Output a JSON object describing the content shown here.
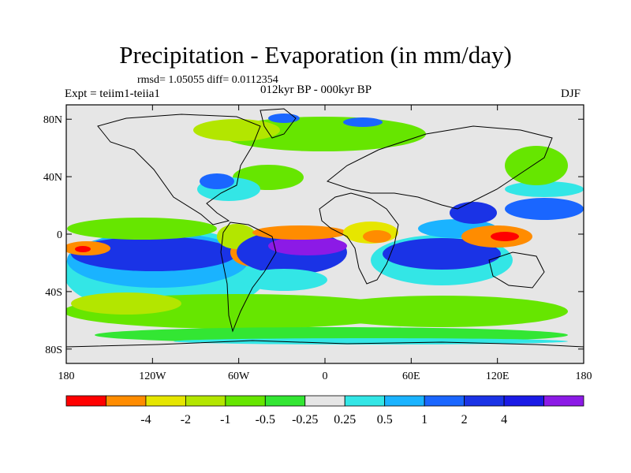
{
  "title": "Precipitation - Evaporation (in mm/day)",
  "stats_text": "rmsd= 1.05055 diff= 0.0112354",
  "experiment_text": "Expt = teiim1-teiia1",
  "period_text": "012kyr BP - 000kyr BP",
  "season": "DJF",
  "colors": {
    "neutral_fill": "#e6e6e6",
    "coastline": "#000000"
  },
  "map": {
    "projection": "cylindrical-equidistant",
    "lon_range": [
      -180,
      180
    ],
    "lat_range": [
      -90,
      90
    ],
    "lat_ticks": [
      {
        "value": 80,
        "label": "80N"
      },
      {
        "value": 40,
        "label": "40N"
      },
      {
        "value": 0,
        "label": "0"
      },
      {
        "value": -40,
        "label": "40S"
      },
      {
        "value": -80,
        "label": "80S"
      }
    ],
    "lon_ticks": [
      {
        "value": -180,
        "label": "180"
      },
      {
        "value": -120,
        "label": "120W"
      },
      {
        "value": -60,
        "label": "60W"
      },
      {
        "value": 0,
        "label": "0"
      },
      {
        "value": 60,
        "label": "60E"
      },
      {
        "value": 120,
        "label": "120E"
      },
      {
        "value": 180,
        "label": "180"
      }
    ]
  },
  "colorbar": {
    "colors": [
      "#ff0000",
      "#ff8c00",
      "#e6e600",
      "#b3e600",
      "#66e600",
      "#33e633",
      "#e6e6e6",
      "#33e6e6",
      "#1ab3ff",
      "#1a66ff",
      "#1a33e6",
      "#1a1ae6",
      "#8c1ae6"
    ],
    "labels": [
      "-4",
      "-2",
      "-1",
      "-0.5",
      "-0.25",
      "0.25",
      "0.5",
      "1",
      "2",
      "4"
    ]
  }
}
